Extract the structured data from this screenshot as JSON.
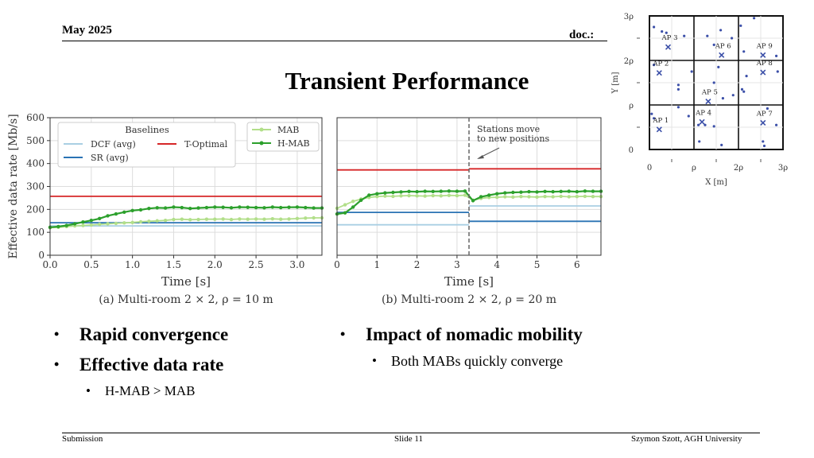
{
  "header": {
    "date": "May 2025",
    "doc": "doc.:"
  },
  "title": "Transient Performance",
  "footer": {
    "left": "Submission",
    "center": "Slide 11",
    "right": "Szymon Szott, AGH University"
  },
  "bullets": {
    "left": [
      {
        "text": "Rapid convergence",
        "children": []
      },
      {
        "text": "Effective data rate",
        "children": [
          "H-MAB > MAB"
        ]
      }
    ],
    "right": [
      {
        "text": "Impact of nomadic mobility",
        "children": [
          "Both MABs quickly converge"
        ]
      }
    ]
  },
  "chart_data": [
    {
      "type": "line",
      "caption": "(a) Multi-room 2 × 2, ρ = 10 m",
      "xlabel": "Time [s]",
      "ylabel": "Effective data rate [Mb/s]",
      "xlim": [
        0,
        3.3
      ],
      "ylim": [
        0,
        600
      ],
      "xticks": [
        "0.0",
        "0.5",
        "1.0",
        "1.5",
        "2.0",
        "2.5",
        "3.0"
      ],
      "yticks": [
        "0",
        "100",
        "200",
        "300",
        "400",
        "500",
        "600"
      ],
      "grid": true,
      "legend": {
        "baselines_title": "Baselines",
        "entries": [
          "DCF (avg)",
          "T-Optimal",
          "SR (avg)",
          "MAB",
          "H-MAB"
        ]
      },
      "series": [
        {
          "name": "DCF (avg)",
          "color": "#a9cfe3",
          "x": [
            0,
            3.3
          ],
          "values": [
            128,
            128
          ]
        },
        {
          "name": "SR (avg)",
          "color": "#2a73b4",
          "x": [
            0,
            3.3
          ],
          "values": [
            142,
            142
          ]
        },
        {
          "name": "T-Optimal",
          "color": "#d62728",
          "x": [
            0,
            3.3
          ],
          "values": [
            257,
            257
          ]
        },
        {
          "name": "MAB",
          "color": "#b2df8a",
          "x": [
            0,
            0.1,
            0.2,
            0.3,
            0.4,
            0.5,
            0.6,
            0.7,
            0.8,
            0.9,
            1.0,
            1.1,
            1.2,
            1.3,
            1.4,
            1.5,
            1.6,
            1.7,
            1.8,
            1.9,
            2.0,
            2.1,
            2.2,
            2.3,
            2.4,
            2.5,
            2.6,
            2.7,
            2.8,
            2.9,
            3.0,
            3.1,
            3.2,
            3.3
          ],
          "values": [
            120,
            122,
            125,
            128,
            130,
            132,
            135,
            137,
            139,
            141,
            143,
            146,
            148,
            150,
            152,
            156,
            157,
            155,
            156,
            157,
            157,
            158,
            156,
            158,
            157,
            158,
            157,
            159,
            157,
            158,
            160,
            162,
            163,
            163
          ]
        },
        {
          "name": "H-MAB",
          "color": "#2ca02c",
          "x": [
            0,
            0.1,
            0.2,
            0.3,
            0.4,
            0.5,
            0.6,
            0.7,
            0.8,
            0.9,
            1.0,
            1.1,
            1.2,
            1.3,
            1.4,
            1.5,
            1.6,
            1.7,
            1.8,
            1.9,
            2.0,
            2.1,
            2.2,
            2.3,
            2.4,
            2.5,
            2.6,
            2.7,
            2.8,
            2.9,
            3.0,
            3.1,
            3.2,
            3.3
          ],
          "values": [
            122,
            125,
            130,
            137,
            145,
            152,
            160,
            172,
            180,
            188,
            195,
            198,
            204,
            207,
            206,
            210,
            208,
            204,
            206,
            208,
            210,
            209,
            207,
            210,
            209,
            208,
            207,
            210,
            208,
            209,
            210,
            208,
            206,
            206
          ]
        }
      ]
    },
    {
      "type": "line",
      "caption": "(b) Multi-room 2 × 2, ρ = 20 m",
      "xlabel": "Time [s]",
      "xlim": [
        0,
        6.6
      ],
      "ylim": [
        0,
        600
      ],
      "xticks": [
        "0",
        "1",
        "2",
        "3",
        "4",
        "5",
        "6"
      ],
      "grid": true,
      "annotation": "Stations move to new positions",
      "event_x": 3.3,
      "series": [
        {
          "name": "DCF (avg)",
          "color": "#a9cfe3",
          "segments": [
            {
              "x": [
                0,
                3.3
              ],
              "values": [
                133,
                133
              ]
            },
            {
              "x": [
                3.3,
                6.6
              ],
              "values": [
                215,
                215
              ]
            }
          ]
        },
        {
          "name": "SR (avg)",
          "color": "#2a73b4",
          "segments": [
            {
              "x": [
                0,
                3.3
              ],
              "values": [
                187,
                187
              ]
            },
            {
              "x": [
                3.3,
                6.6
              ],
              "values": [
                148,
                148
              ]
            }
          ]
        },
        {
          "name": "T-Optimal",
          "color": "#d62728",
          "segments": [
            {
              "x": [
                0,
                3.3
              ],
              "values": [
                372,
                372
              ]
            },
            {
              "x": [
                3.3,
                6.6
              ],
              "values": [
                377,
                377
              ]
            }
          ]
        },
        {
          "name": "MAB",
          "color": "#b2df8a",
          "x": [
            0,
            0.2,
            0.4,
            0.6,
            0.8,
            1.0,
            1.2,
            1.4,
            1.6,
            1.8,
            2.0,
            2.2,
            2.4,
            2.6,
            2.8,
            3.0,
            3.2,
            3.4,
            3.6,
            3.8,
            4.0,
            4.2,
            4.4,
            4.6,
            4.8,
            5.0,
            5.2,
            5.4,
            5.6,
            5.8,
            6.0,
            6.2,
            6.4,
            6.6
          ],
          "values": [
            205,
            220,
            235,
            245,
            252,
            256,
            258,
            257,
            259,
            260,
            259,
            258,
            260,
            259,
            261,
            260,
            262,
            240,
            248,
            252,
            253,
            255,
            254,
            256,
            255,
            254,
            256,
            255,
            257,
            255,
            256,
            257,
            256,
            256
          ]
        },
        {
          "name": "H-MAB",
          "color": "#2ca02c",
          "x": [
            0,
            0.2,
            0.4,
            0.6,
            0.8,
            1.0,
            1.2,
            1.4,
            1.6,
            1.8,
            2.0,
            2.2,
            2.4,
            2.6,
            2.8,
            3.0,
            3.2,
            3.4,
            3.6,
            3.8,
            4.0,
            4.2,
            4.4,
            4.6,
            4.8,
            5.0,
            5.2,
            5.4,
            5.6,
            5.8,
            6.0,
            6.2,
            6.4,
            6.6
          ],
          "values": [
            180,
            185,
            210,
            240,
            262,
            268,
            272,
            274,
            276,
            278,
            277,
            279,
            278,
            279,
            280,
            279,
            280,
            238,
            255,
            262,
            268,
            272,
            274,
            275,
            277,
            276,
            278,
            277,
            278,
            279,
            277,
            280,
            279,
            279
          ]
        }
      ]
    },
    {
      "type": "scatter",
      "xlabel": "X [m]",
      "ylabel": "Y [m]",
      "xticks": [
        "0",
        "ρ",
        "2ρ",
        "3ρ"
      ],
      "yticks": [
        "0",
        "ρ",
        "2ρ",
        "3ρ"
      ],
      "xlim": [
        0,
        3
      ],
      "ylim": [
        0,
        3
      ],
      "aps": [
        {
          "label": "AP 1",
          "x": 0.22,
          "y": 0.45
        },
        {
          "label": "AP 2",
          "x": 0.22,
          "y": 1.72
        },
        {
          "label": "AP 3",
          "x": 0.42,
          "y": 2.3
        },
        {
          "label": "AP 4",
          "x": 1.18,
          "y": 0.62
        },
        {
          "label": "AP 5",
          "x": 1.32,
          "y": 1.08
        },
        {
          "label": "AP 6",
          "x": 1.62,
          "y": 2.12
        },
        {
          "label": "AP 7",
          "x": 2.55,
          "y": 0.6
        },
        {
          "label": "AP 8",
          "x": 2.55,
          "y": 1.73
        },
        {
          "label": "AP 9",
          "x": 2.55,
          "y": 2.12
        }
      ],
      "stations": [
        {
          "x": 0.1,
          "y": 2.75
        },
        {
          "x": 0.28,
          "y": 2.65
        },
        {
          "x": 0.38,
          "y": 2.62
        },
        {
          "x": 0.78,
          "y": 2.55
        },
        {
          "x": 0.1,
          "y": 1.9
        },
        {
          "x": 0.65,
          "y": 1.45
        },
        {
          "x": 0.65,
          "y": 1.35
        },
        {
          "x": 0.95,
          "y": 1.75
        },
        {
          "x": 0.05,
          "y": 0.8
        },
        {
          "x": 0.1,
          "y": 0.7
        },
        {
          "x": 0.65,
          "y": 0.95
        },
        {
          "x": 0.88,
          "y": 0.75
        },
        {
          "x": 1.3,
          "y": 2.55
        },
        {
          "x": 1.6,
          "y": 2.68
        },
        {
          "x": 1.85,
          "y": 2.5
        },
        {
          "x": 1.45,
          "y": 2.35
        },
        {
          "x": 1.45,
          "y": 1.5
        },
        {
          "x": 1.55,
          "y": 1.85
        },
        {
          "x": 1.65,
          "y": 1.15
        },
        {
          "x": 1.88,
          "y": 1.22
        },
        {
          "x": 1.1,
          "y": 0.55
        },
        {
          "x": 1.25,
          "y": 0.55
        },
        {
          "x": 1.45,
          "y": 0.52
        },
        {
          "x": 1.12,
          "y": 0.18
        },
        {
          "x": 1.62,
          "y": 0.1
        },
        {
          "x": 2.05,
          "y": 2.78
        },
        {
          "x": 2.35,
          "y": 2.95
        },
        {
          "x": 2.12,
          "y": 2.2
        },
        {
          "x": 2.85,
          "y": 2.1
        },
        {
          "x": 2.18,
          "y": 1.65
        },
        {
          "x": 2.08,
          "y": 1.35
        },
        {
          "x": 2.88,
          "y": 1.75
        },
        {
          "x": 2.65,
          "y": 0.92
        },
        {
          "x": 2.85,
          "y": 0.55
        },
        {
          "x": 2.55,
          "y": 0.18
        },
        {
          "x": 2.58,
          "y": 0.08
        },
        {
          "x": 2.12,
          "y": 1.3
        }
      ]
    }
  ]
}
